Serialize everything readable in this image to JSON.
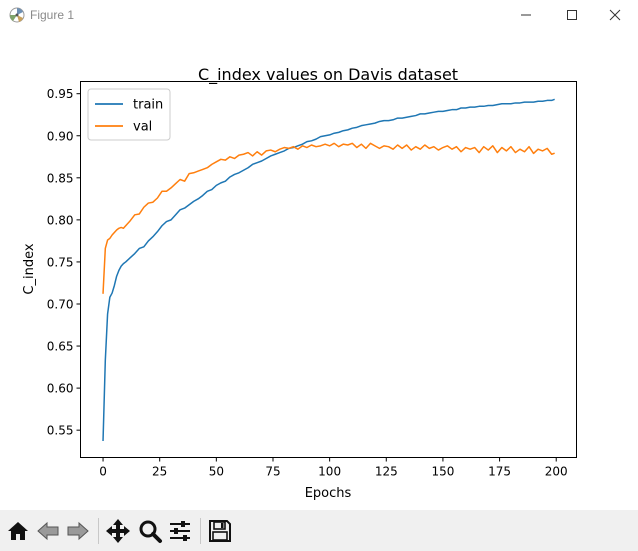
{
  "window": {
    "title": "Figure 1"
  },
  "chart_data": {
    "type": "line",
    "title": "C_index values on Davis dataset",
    "xlabel": "Epochs",
    "ylabel": "C_index",
    "xlim": [
      -9.95,
      208.95
    ],
    "ylim": [
      0.5175,
      0.9645
    ],
    "xticks": [
      0,
      25,
      50,
      75,
      100,
      125,
      150,
      175,
      200
    ],
    "yticks": [
      0.55,
      0.6,
      0.65,
      0.7,
      0.75,
      0.8,
      0.85,
      0.9,
      0.95
    ],
    "ytick_labels": [
      "0.55",
      "0.60",
      "0.65",
      "0.70",
      "0.75",
      "0.80",
      "0.85",
      "0.90",
      "0.95"
    ],
    "legend": "upper left",
    "grid": false,
    "series": [
      {
        "name": "train",
        "color": "#1f77b4",
        "x": [
          0,
          1,
          2,
          3,
          4,
          5,
          6,
          7,
          8,
          9,
          10,
          12,
          14,
          16,
          18,
          20,
          22,
          24,
          26,
          28,
          30,
          32,
          34,
          36,
          38,
          40,
          42,
          44,
          46,
          48,
          50,
          52,
          54,
          56,
          58,
          60,
          62,
          64,
          66,
          68,
          70,
          72,
          74,
          76,
          78,
          80,
          82,
          84,
          86,
          88,
          90,
          92,
          94,
          96,
          98,
          100,
          102,
          104,
          106,
          108,
          110,
          112,
          114,
          116,
          118,
          120,
          122,
          124,
          126,
          128,
          130,
          132,
          134,
          136,
          138,
          140,
          142,
          144,
          146,
          148,
          150,
          152,
          154,
          156,
          158,
          160,
          162,
          164,
          166,
          168,
          170,
          172,
          174,
          176,
          178,
          180,
          182,
          184,
          186,
          188,
          190,
          192,
          194,
          196,
          198,
          199
        ],
        "values": [
          0.538,
          0.633,
          0.688,
          0.708,
          0.713,
          0.722,
          0.733,
          0.74,
          0.745,
          0.748,
          0.75,
          0.755,
          0.76,
          0.766,
          0.768,
          0.775,
          0.78,
          0.786,
          0.793,
          0.798,
          0.8,
          0.806,
          0.812,
          0.814,
          0.818,
          0.822,
          0.825,
          0.829,
          0.834,
          0.836,
          0.841,
          0.844,
          0.846,
          0.851,
          0.854,
          0.856,
          0.859,
          0.862,
          0.866,
          0.868,
          0.87,
          0.873,
          0.876,
          0.878,
          0.88,
          0.882,
          0.885,
          0.886,
          0.888,
          0.89,
          0.893,
          0.894,
          0.896,
          0.899,
          0.9,
          0.901,
          0.903,
          0.904,
          0.906,
          0.907,
          0.909,
          0.91,
          0.912,
          0.913,
          0.914,
          0.915,
          0.917,
          0.918,
          0.918,
          0.919,
          0.921,
          0.921,
          0.922,
          0.923,
          0.924,
          0.926,
          0.926,
          0.927,
          0.928,
          0.929,
          0.929,
          0.93,
          0.931,
          0.931,
          0.933,
          0.933,
          0.934,
          0.934,
          0.935,
          0.935,
          0.936,
          0.936,
          0.937,
          0.938,
          0.938,
          0.938,
          0.939,
          0.939,
          0.94,
          0.94,
          0.94,
          0.941,
          0.941,
          0.942,
          0.942,
          0.943
        ]
      },
      {
        "name": "val",
        "color": "#ff7f0e",
        "x": [
          0,
          1,
          2,
          3,
          4,
          5,
          6,
          7,
          8,
          9,
          10,
          12,
          14,
          16,
          18,
          20,
          22,
          24,
          26,
          28,
          30,
          32,
          34,
          36,
          38,
          40,
          42,
          44,
          46,
          48,
          50,
          52,
          54,
          56,
          58,
          60,
          62,
          64,
          66,
          68,
          70,
          72,
          74,
          76,
          78,
          80,
          82,
          84,
          86,
          88,
          90,
          92,
          94,
          96,
          98,
          100,
          102,
          104,
          106,
          108,
          110,
          112,
          114,
          116,
          118,
          120,
          122,
          124,
          126,
          128,
          130,
          132,
          134,
          136,
          138,
          140,
          142,
          144,
          146,
          148,
          150,
          152,
          154,
          156,
          158,
          160,
          162,
          164,
          166,
          168,
          170,
          172,
          174,
          176,
          178,
          180,
          182,
          184,
          186,
          188,
          190,
          192,
          194,
          196,
          198,
          199
        ],
        "values": [
          0.713,
          0.766,
          0.776,
          0.778,
          0.782,
          0.785,
          0.788,
          0.79,
          0.791,
          0.79,
          0.793,
          0.799,
          0.806,
          0.807,
          0.815,
          0.82,
          0.821,
          0.826,
          0.834,
          0.834,
          0.838,
          0.843,
          0.848,
          0.846,
          0.855,
          0.856,
          0.858,
          0.86,
          0.862,
          0.866,
          0.869,
          0.872,
          0.871,
          0.875,
          0.873,
          0.877,
          0.878,
          0.88,
          0.876,
          0.881,
          0.877,
          0.882,
          0.883,
          0.881,
          0.884,
          0.886,
          0.885,
          0.887,
          0.884,
          0.888,
          0.886,
          0.889,
          0.887,
          0.888,
          0.89,
          0.888,
          0.891,
          0.887,
          0.89,
          0.889,
          0.891,
          0.886,
          0.89,
          0.885,
          0.891,
          0.888,
          0.885,
          0.888,
          0.887,
          0.884,
          0.889,
          0.885,
          0.889,
          0.883,
          0.887,
          0.884,
          0.889,
          0.885,
          0.887,
          0.883,
          0.886,
          0.888,
          0.884,
          0.887,
          0.881,
          0.886,
          0.884,
          0.886,
          0.88,
          0.887,
          0.883,
          0.888,
          0.88,
          0.886,
          0.882,
          0.887,
          0.88,
          0.884,
          0.881,
          0.887,
          0.879,
          0.884,
          0.882,
          0.885,
          0.878,
          0.879
        ]
      }
    ]
  },
  "toolbar": {
    "home_icon": "home-icon",
    "back_icon": "arrow-left-icon",
    "forward_icon": "arrow-right-icon",
    "pan_icon": "move-icon",
    "zoom_icon": "magnifier-icon",
    "configure_icon": "sliders-icon",
    "save_icon": "floppy-disk-icon"
  }
}
